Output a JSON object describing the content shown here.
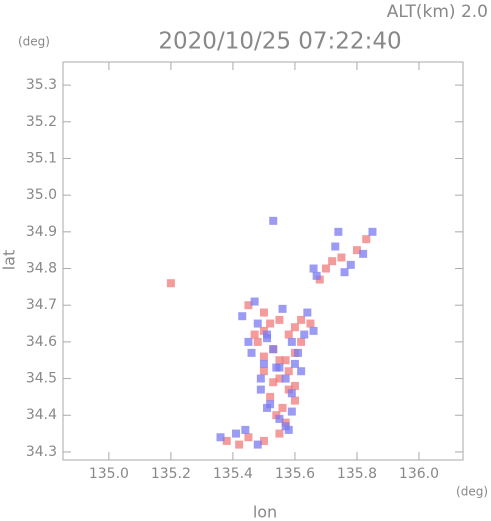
{
  "chart_data": {
    "type": "scatter",
    "title": "2020/10/25 07:22:40",
    "subtitle": "ALT(km) 2.0",
    "y_unit": "(deg)",
    "x_unit": "(deg)",
    "xlabel": "lon",
    "ylabel": "lat",
    "xlim": [
      134.852,
      136.142
    ],
    "ylim": [
      34.278,
      35.363
    ],
    "xticks": [
      {
        "value": 135,
        "label": "135.0"
      },
      135.2,
      135.4,
      135.6,
      135.8,
      {
        "value": 136,
        "label": "136.0"
      }
    ],
    "yticks": [
      34.3,
      34.4,
      34.5,
      34.6,
      34.7,
      34.8,
      34.9,
      {
        "value": 35,
        "label": "35.0"
      },
      35.1,
      35.2,
      35.3
    ],
    "series": [
      {
        "color": "#f07a7a",
        "x": [
          135.45,
          135.5,
          135.52,
          135.55,
          135.58,
          135.6,
          135.48,
          135.53,
          135.57,
          135.62,
          135.5,
          135.55,
          135.6,
          135.52,
          135.58,
          135.56,
          135.54,
          135.6,
          135.55,
          135.58,
          135.5,
          135.62,
          135.38,
          135.42,
          135.45,
          135.5,
          135.55,
          135.7,
          135.75,
          135.8,
          135.83,
          135.68,
          135.72,
          135.2,
          135.47,
          135.6,
          135.65,
          135.5,
          135.57,
          135.53
        ],
        "y": [
          34.7,
          34.68,
          34.65,
          34.66,
          34.62,
          34.64,
          34.6,
          34.58,
          34.55,
          34.6,
          34.52,
          34.5,
          34.48,
          34.45,
          34.47,
          34.42,
          34.4,
          34.44,
          34.55,
          34.52,
          34.63,
          34.66,
          34.33,
          34.32,
          34.34,
          34.33,
          34.35,
          34.8,
          34.83,
          34.85,
          34.88,
          34.77,
          34.82,
          34.76,
          34.62,
          34.57,
          34.65,
          34.56,
          34.38,
          34.49
        ]
      },
      {
        "color": "#7a7af0",
        "x": [
          135.43,
          135.47,
          135.51,
          135.56,
          135.59,
          135.63,
          135.46,
          135.51,
          135.55,
          135.61,
          135.49,
          135.54,
          135.59,
          135.51,
          135.57,
          135.55,
          135.52,
          135.59,
          135.53,
          135.6,
          135.48,
          135.64,
          135.36,
          135.41,
          135.44,
          135.48,
          135.57,
          135.67,
          135.73,
          135.78,
          135.85,
          135.66,
          135.76,
          135.82,
          135.45,
          135.62,
          135.66,
          135.5,
          135.58,
          135.49,
          135.53,
          135.74
        ],
        "y": [
          34.67,
          34.71,
          34.62,
          34.69,
          34.6,
          34.62,
          34.57,
          34.61,
          34.53,
          34.57,
          34.5,
          34.53,
          34.46,
          34.42,
          34.5,
          34.39,
          34.43,
          34.41,
          34.58,
          34.54,
          34.65,
          34.68,
          34.34,
          34.35,
          34.36,
          34.32,
          34.37,
          34.78,
          34.86,
          34.81,
          34.9,
          34.8,
          34.79,
          34.84,
          34.6,
          34.52,
          34.63,
          34.54,
          34.36,
          34.47,
          34.93,
          34.9
        ]
      }
    ]
  }
}
